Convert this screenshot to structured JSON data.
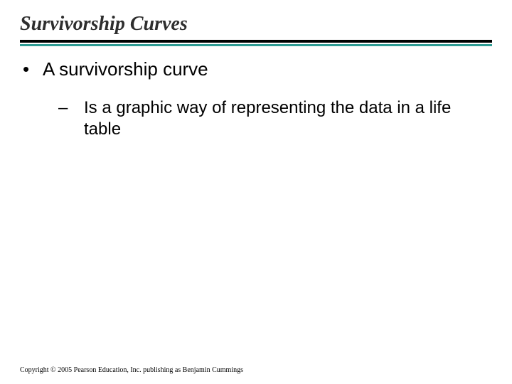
{
  "title": "Survivorship Curves",
  "bullets": {
    "level1": {
      "marker": "•",
      "text": "A survivorship curve"
    },
    "level2": {
      "marker": "–",
      "text": "Is a graphic way of representing the data in a life table"
    }
  },
  "copyright": "Copyright © 2005 Pearson Education, Inc. publishing as Benjamin Cummings",
  "style": {
    "title_color": "#2e2e2e",
    "title_fontsize": 28,
    "title_font": "Times New Roman italic bold",
    "rule_color_top": "#000000",
    "rule_color_bottom": "#2f9c94",
    "body_fontsize_l1": 26,
    "body_fontsize_l2": 24,
    "background_color": "#ffffff",
    "copyright_fontsize": 10
  }
}
